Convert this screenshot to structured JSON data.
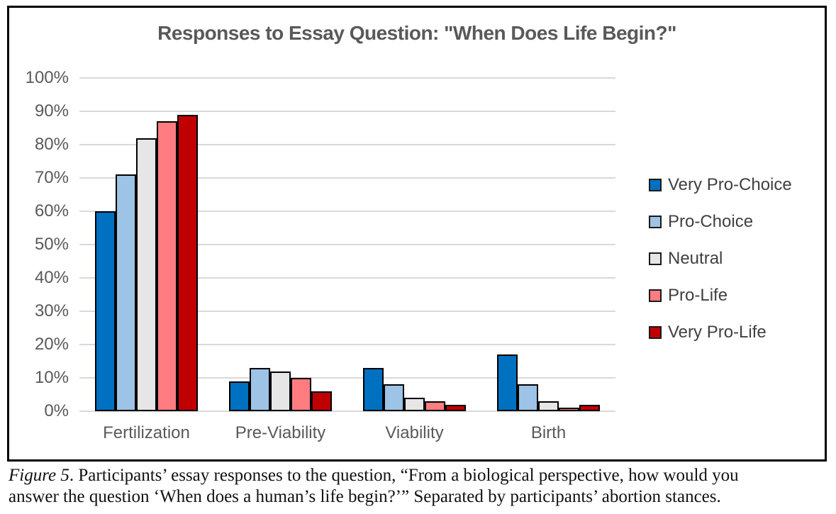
{
  "chart_data": {
    "type": "bar",
    "title": "Responses to Essay Question: \"When Does Life Begin?\"",
    "categories": [
      "Fertilization",
      "Pre-Viability",
      "Viability",
      "Birth"
    ],
    "series": [
      {
        "name": "Very Pro-Choice",
        "color": "#0070C0",
        "values": [
          60,
          9,
          13,
          17
        ]
      },
      {
        "name": "Pro-Choice",
        "color": "#9DC3E6",
        "values": [
          71,
          13,
          8,
          8
        ]
      },
      {
        "name": "Neutral",
        "color": "#E7E6E6",
        "values": [
          82,
          12,
          4,
          3
        ]
      },
      {
        "name": "Pro-Life",
        "color": "#FF7C80",
        "values": [
          87,
          10,
          3,
          1
        ]
      },
      {
        "name": "Very Pro-Life",
        "color": "#C00000",
        "values": [
          89,
          6,
          2,
          2
        ]
      }
    ],
    "xlabel": "",
    "ylabel": "",
    "ylim": [
      0,
      100
    ],
    "ytick_step": 10,
    "ytick_suffix": "%",
    "grid": true,
    "gridline_color": "#D9D9D9",
    "bar_border_color": "#000000",
    "legend_position": "right",
    "title_color": "#595959",
    "axis_label_color": "#595959"
  },
  "caption": {
    "prefix_italic": "Figure 5",
    "line1_rest": ". Participants’ essay responses to the question, “From a biological perspective, how would you",
    "line2": "answer the question ‘When does a human’s life begin?’” Separated by participants’ abortion stances."
  }
}
